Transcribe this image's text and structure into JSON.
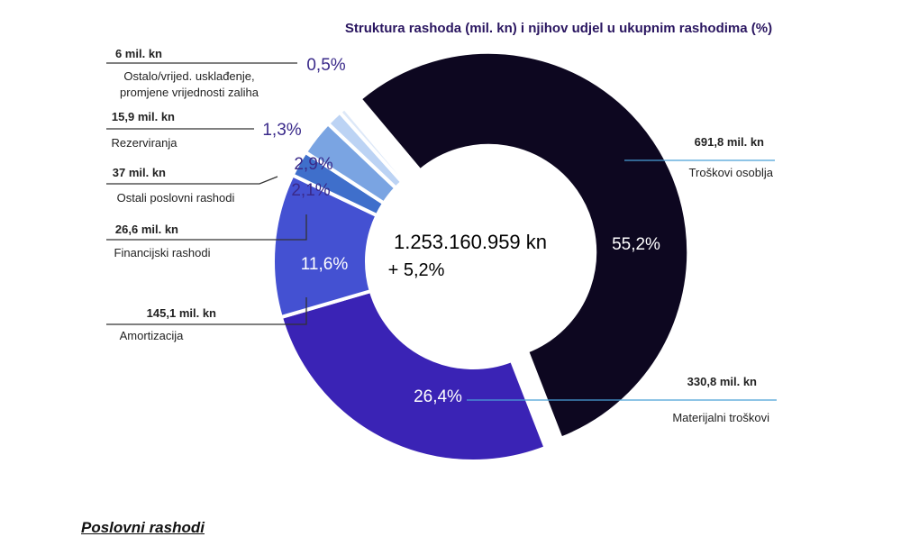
{
  "chart_data": {
    "type": "pie",
    "title": "Struktura rashoda (mil. kn) i njihov udjel u ukupnim rashodima (%)",
    "total_label": "1.253.160.959 kn",
    "change_label": "+ 5,2%",
    "slices": [
      {
        "name": "Troškovi osoblja",
        "amount": "691,8 mil. kn",
        "percent": 55.2,
        "pct_label": "55,2%",
        "color": "#0d0720"
      },
      {
        "name": "Materijalni troškovi",
        "amount": "330,8 mil. kn",
        "percent": 26.4,
        "pct_label": "26,4%",
        "color": "#3a23b5"
      },
      {
        "name": "Amortizacija",
        "amount": "145,1 mil. kn",
        "percent": 11.6,
        "pct_label": "11,6%",
        "color": "#4451d2"
      },
      {
        "name": "Financijski rashodi",
        "amount": "26,6 mil. kn",
        "percent": 2.1,
        "pct_label": "2,1%",
        "color": "#3f6fcb"
      },
      {
        "name": "Ostali poslovni rashodi",
        "amount": "37 mil. kn",
        "percent": 2.9,
        "pct_label": "2,9%",
        "color": "#7aa4e2"
      },
      {
        "name": "Rezerviranja",
        "amount": "15,9 mil. kn",
        "percent": 1.3,
        "pct_label": "1,3%",
        "color": "#bcd3f4"
      },
      {
        "name": "Ostalo/vrijed. usklađenje, promjene vrijednosti zaliha",
        "name_lines": [
          "Ostalo/vrijed. usklađenje,",
          "promjene vrijednosti zaliha"
        ],
        "amount": "6 mil. kn",
        "percent": 0.5,
        "pct_label": "0,5%",
        "color": "#dde8f8"
      }
    ]
  },
  "caption": "Poslovni rashodi",
  "colors": {
    "title": "#2a1660",
    "text": "#222222",
    "pct_outside": "#3a2a8a",
    "leader": "#333333",
    "leader_blue": "#4aa0d8"
  }
}
